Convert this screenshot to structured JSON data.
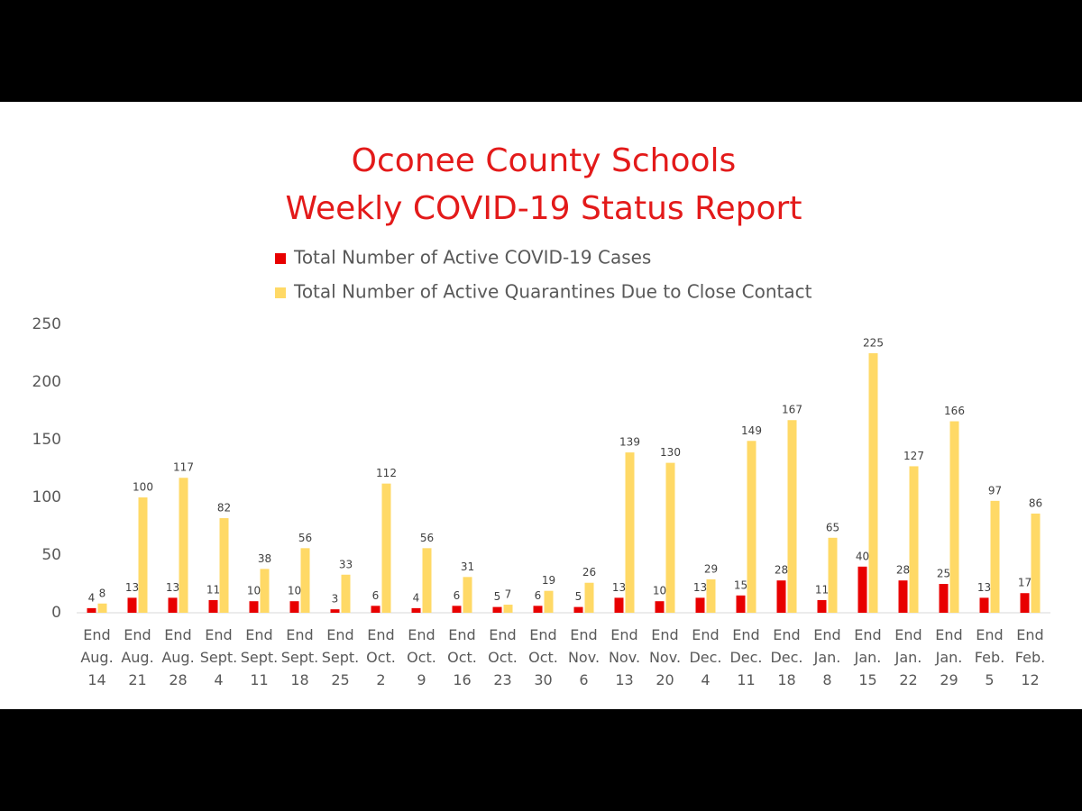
{
  "chart_data": {
    "type": "bar",
    "title": "Oconee County Schools",
    "subtitle": "Weekly COVID-19 Status Report",
    "categories": [
      "End Aug. 14",
      "End Aug. 21",
      "End Aug. 28",
      "End Sept. 4",
      "End Sept. 11",
      "End Sept. 18",
      "End Sept. 25",
      "End Oct. 2",
      "End Oct. 9",
      "End Oct. 16",
      "End Oct. 23",
      "End Oct. 30",
      "End Nov. 6",
      "End Nov. 13",
      "End Nov. 20",
      "End Dec. 4",
      "End Dec. 11",
      "End Dec. 18",
      "End Jan. 8",
      "End Jan. 15",
      "End Jan. 22",
      "End Jan. 29",
      "End Feb. 5",
      "End Feb. 12"
    ],
    "series": [
      {
        "name": "Total Number of Active COVID-19 Cases",
        "color": "#e80000",
        "values": [
          4,
          13,
          13,
          11,
          10,
          10,
          3,
          6,
          4,
          6,
          5,
          6,
          5,
          13,
          10,
          13,
          15,
          28,
          11,
          40,
          28,
          25,
          13,
          17
        ]
      },
      {
        "name": "Total Number of Active Quarantines Due to Close Contact",
        "color": "#ffd966",
        "values": [
          8,
          100,
          117,
          82,
          38,
          56,
          33,
          112,
          56,
          31,
          7,
          19,
          26,
          139,
          130,
          29,
          149,
          167,
          65,
          225,
          127,
          166,
          97,
          86
        ]
      }
    ],
    "ylim": [
      0,
      250
    ],
    "yticks": [
      0,
      50,
      100,
      150,
      200,
      250
    ],
    "legend": "top",
    "grid": false,
    "data_labels": true
  }
}
